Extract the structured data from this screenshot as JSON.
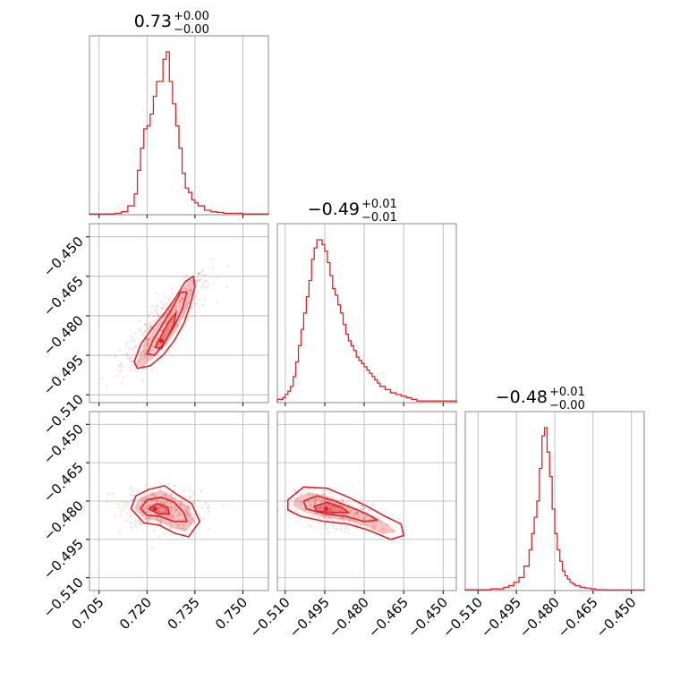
{
  "chart_data": {
    "type": "corner",
    "accent_color": "#d62728",
    "grid": true,
    "parameters": [
      {
        "title": {
          "value": "0.73",
          "upper": "+0.00",
          "lower": "−0.00"
        },
        "range": [
          0.702,
          0.758
        ],
        "ticks": [
          "0.705",
          "0.720",
          "0.735",
          "0.750"
        ],
        "tick_values": [
          0.705,
          0.72,
          0.735,
          0.75
        ]
      },
      {
        "title": {
          "value": "−0.49",
          "upper": "+0.01",
          "lower": "−0.01"
        },
        "range": [
          -0.513,
          -0.445
        ],
        "ticks": [
          "−0.510",
          "−0.495",
          "−0.480",
          "−0.465",
          "−0.450"
        ],
        "tick_values": [
          -0.51,
          -0.495,
          -0.48,
          -0.465,
          -0.45
        ]
      },
      {
        "title": {
          "value": "−0.48",
          "upper": "+0.01",
          "lower": "−0.00"
        },
        "range": [
          -0.515,
          -0.445
        ],
        "ticks": [
          "−0.510",
          "−0.495",
          "−0.480",
          "−0.465",
          "−0.450"
        ],
        "tick_values": [
          -0.51,
          -0.495,
          -0.48,
          -0.465,
          -0.45
        ]
      }
    ],
    "histograms": [
      {
        "param": 0,
        "bin_edges": [
          0.702,
          0.704,
          0.706,
          0.708,
          0.71,
          0.712,
          0.714,
          0.716,
          0.717,
          0.718,
          0.719,
          0.72,
          0.721,
          0.722,
          0.723,
          0.724,
          0.725,
          0.726,
          0.727,
          0.728,
          0.729,
          0.73,
          0.731,
          0.732,
          0.733,
          0.734,
          0.735,
          0.736,
          0.738,
          0.74,
          0.742,
          0.744,
          0.746,
          0.748,
          0.75,
          0.752,
          0.754,
          0.758
        ],
        "counts": [
          0.5,
          0.5,
          0.5,
          0.5,
          1,
          2,
          6,
          14,
          30,
          45,
          58,
          60,
          68,
          80,
          90,
          90,
          105,
          110,
          90,
          75,
          60,
          45,
          28,
          18,
          15,
          10,
          8,
          6,
          3,
          2,
          1.5,
          1,
          1,
          1,
          0.5,
          0.5,
          0.5
        ]
      },
      {
        "param": 1,
        "bin_edges": [
          -0.513,
          -0.511,
          -0.51,
          -0.509,
          -0.508,
          -0.507,
          -0.506,
          -0.505,
          -0.504,
          -0.503,
          -0.502,
          -0.501,
          -0.5,
          -0.499,
          -0.498,
          -0.497,
          -0.496,
          -0.495,
          -0.494,
          -0.493,
          -0.492,
          -0.491,
          -0.49,
          -0.489,
          -0.488,
          -0.487,
          -0.486,
          -0.485,
          -0.484,
          -0.483,
          -0.482,
          -0.481,
          -0.48,
          -0.479,
          -0.478,
          -0.477,
          -0.476,
          -0.475,
          -0.474,
          -0.472,
          -0.47,
          -0.468,
          -0.466,
          -0.464,
          -0.462,
          -0.46,
          -0.455,
          -0.445
        ],
        "counts": [
          2,
          3,
          5,
          7,
          10,
          16,
          25,
          35,
          45,
          55,
          65,
          75,
          88,
          95,
          100,
          100,
          97,
          93,
          86,
          78,
          70,
          66,
          60,
          55,
          48,
          42,
          38,
          35,
          32,
          28,
          26,
          24,
          22,
          20,
          18,
          16,
          14,
          12,
          10,
          8,
          6,
          5,
          4,
          3,
          2,
          1,
          1
        ]
      },
      {
        "param": 2,
        "bin_edges": [
          -0.515,
          -0.505,
          -0.5,
          -0.498,
          -0.496,
          -0.494,
          -0.492,
          -0.49,
          -0.489,
          -0.488,
          -0.487,
          -0.486,
          -0.485,
          -0.484,
          -0.483,
          -0.482,
          -0.481,
          -0.48,
          -0.479,
          -0.478,
          -0.477,
          -0.476,
          -0.475,
          -0.474,
          -0.473,
          -0.472,
          -0.47,
          -0.468,
          -0.466,
          -0.464,
          -0.462,
          -0.46,
          -0.445
        ],
        "counts": [
          0.5,
          1,
          2,
          3,
          5,
          8,
          15,
          25,
          35,
          45,
          55,
          75,
          95,
          100,
          85,
          70,
          50,
          35,
          25,
          18,
          12,
          9,
          7,
          5,
          4,
          3,
          2,
          1.5,
          1,
          0.5,
          0.5,
          0.3
        ]
      }
    ],
    "contours_2d": [
      {
        "pair": [
          0,
          1
        ],
        "peak": [
          0.7245,
          -0.4895
        ],
        "filled_region": [
          [
            0.7175,
            -0.4955
          ],
          [
            0.7195,
            -0.4895
          ],
          [
            0.723,
            -0.484
          ],
          [
            0.7265,
            -0.478
          ],
          [
            0.73,
            -0.472
          ],
          [
            0.733,
            -0.466
          ],
          [
            0.736,
            -0.4665
          ],
          [
            0.734,
            -0.4725
          ],
          [
            0.732,
            -0.479
          ],
          [
            0.7295,
            -0.485
          ],
          [
            0.726,
            -0.491
          ],
          [
            0.722,
            -0.496
          ],
          [
            0.7185,
            -0.4995
          ],
          [
            0.716,
            -0.499
          ]
        ],
        "contour_levels": [
          [
            [
              0.716,
              -0.4975
            ],
            [
              0.718,
              -0.491
            ],
            [
              0.7215,
              -0.485
            ],
            [
              0.7255,
              -0.479
            ],
            [
              0.729,
              -0.473
            ],
            [
              0.732,
              -0.467
            ],
            [
              0.7345,
              -0.465
            ],
            [
              0.735,
              -0.469
            ],
            [
              0.7335,
              -0.476
            ],
            [
              0.7315,
              -0.483
            ],
            [
              0.7285,
              -0.4895
            ],
            [
              0.725,
              -0.495
            ],
            [
              0.721,
              -0.499
            ],
            [
              0.717,
              -0.5
            ]
          ],
          [
            [
              0.72,
              -0.4945
            ],
            [
              0.722,
              -0.489
            ],
            [
              0.725,
              -0.483
            ],
            [
              0.728,
              -0.477
            ],
            [
              0.7305,
              -0.471
            ],
            [
              0.7325,
              -0.471
            ],
            [
              0.731,
              -0.4775
            ],
            [
              0.7285,
              -0.484
            ],
            [
              0.7255,
              -0.49
            ],
            [
              0.7225,
              -0.495
            ]
          ],
          [
            [
              0.7225,
              -0.492
            ],
            [
              0.7245,
              -0.4875
            ],
            [
              0.727,
              -0.482
            ],
            [
              0.729,
              -0.479
            ],
            [
              0.7285,
              -0.483
            ],
            [
              0.7265,
              -0.488
            ],
            [
              0.7245,
              -0.4925
            ]
          ]
        ]
      },
      {
        "pair": [
          0,
          2
        ],
        "peak": [
          0.7225,
          -0.483
        ],
        "filled_region": [
          [
            0.716,
            -0.483
          ],
          [
            0.7175,
            -0.479
          ],
          [
            0.721,
            -0.477
          ],
          [
            0.725,
            -0.476
          ],
          [
            0.729,
            -0.479
          ],
          [
            0.733,
            -0.482
          ],
          [
            0.735,
            -0.488
          ],
          [
            0.732,
            -0.492
          ],
          [
            0.728,
            -0.4905
          ],
          [
            0.724,
            -0.488
          ],
          [
            0.7195,
            -0.487
          ]
        ],
        "contour_levels": [
          [
            [
              0.715,
              -0.483
            ],
            [
              0.7165,
              -0.478
            ],
            [
              0.7205,
              -0.4755
            ],
            [
              0.7255,
              -0.474
            ],
            [
              0.7295,
              -0.4775
            ],
            [
              0.734,
              -0.481
            ],
            [
              0.7365,
              -0.488
            ],
            [
              0.733,
              -0.494
            ],
            [
              0.7285,
              -0.4925
            ],
            [
              0.724,
              -0.4895
            ],
            [
              0.719,
              -0.4885
            ]
          ],
          [
            [
              0.718,
              -0.483
            ],
            [
              0.72,
              -0.4795
            ],
            [
              0.7245,
              -0.4785
            ],
            [
              0.7285,
              -0.4805
            ],
            [
              0.7315,
              -0.4845
            ],
            [
              0.7325,
              -0.488
            ],
            [
              0.7285,
              -0.488
            ],
            [
              0.724,
              -0.486
            ],
            [
              0.72,
              -0.4855
            ]
          ],
          [
            [
              0.7205,
              -0.483
            ],
            [
              0.723,
              -0.481
            ],
            [
              0.7265,
              -0.4825
            ],
            [
              0.727,
              -0.485
            ],
            [
              0.7235,
              -0.485
            ]
          ]
        ]
      },
      {
        "pair": [
          1,
          2
        ],
        "peak": [
          -0.4945,
          -0.483
        ],
        "filled_region": [
          [
            -0.5065,
            -0.479
          ],
          [
            -0.501,
            -0.4765
          ],
          [
            -0.494,
            -0.478
          ],
          [
            -0.488,
            -0.481
          ],
          [
            -0.482,
            -0.484
          ],
          [
            -0.476,
            -0.486
          ],
          [
            -0.471,
            -0.489
          ],
          [
            -0.468,
            -0.492
          ],
          [
            -0.473,
            -0.493
          ],
          [
            -0.48,
            -0.4895
          ],
          [
            -0.487,
            -0.4875
          ],
          [
            -0.495,
            -0.4865
          ],
          [
            -0.502,
            -0.4845
          ],
          [
            -0.507,
            -0.482
          ]
        ],
        "contour_levels": [
          [
            [
              -0.509,
              -0.4795
            ],
            [
              -0.503,
              -0.4745
            ],
            [
              -0.494,
              -0.475
            ],
            [
              -0.486,
              -0.4785
            ],
            [
              -0.479,
              -0.482
            ],
            [
              -0.472,
              -0.486
            ],
            [
              -0.466,
              -0.489
            ],
            [
              -0.465,
              -0.4935
            ],
            [
              -0.47,
              -0.495
            ],
            [
              -0.478,
              -0.4915
            ],
            [
              -0.486,
              -0.489
            ],
            [
              -0.495,
              -0.488
            ],
            [
              -0.504,
              -0.486
            ],
            [
              -0.509,
              -0.4835
            ]
          ],
          [
            [
              -0.503,
              -0.48
            ],
            [
              -0.498,
              -0.478
            ],
            [
              -0.491,
              -0.48
            ],
            [
              -0.485,
              -0.4825
            ],
            [
              -0.479,
              -0.485
            ],
            [
              -0.475,
              -0.4875
            ],
            [
              -0.48,
              -0.488
            ],
            [
              -0.487,
              -0.486
            ],
            [
              -0.495,
              -0.485
            ],
            [
              -0.502,
              -0.483
            ]
          ],
          [
            [
              -0.499,
              -0.482
            ],
            [
              -0.494,
              -0.4805
            ],
            [
              -0.4885,
              -0.4825
            ],
            [
              -0.486,
              -0.4845
            ],
            [
              -0.492,
              -0.4845
            ],
            [
              -0.498,
              -0.484
            ]
          ]
        ]
      }
    ],
    "scatter_seeds": [
      {
        "pair": [
          0,
          1
        ],
        "center": [
          0.726,
          -0.482
        ],
        "spread": [
          0.007,
          0.009
        ],
        "corr": 0.88,
        "count": 420
      },
      {
        "pair": [
          0,
          2
        ],
        "center": [
          0.725,
          -0.483
        ],
        "spread": [
          0.006,
          0.004
        ],
        "corr": -0.15,
        "count": 420
      },
      {
        "pair": [
          1,
          2
        ],
        "center": [
          -0.49,
          -0.484
        ],
        "spread": [
          0.008,
          0.0035
        ],
        "corr": -0.55,
        "count": 420
      }
    ]
  }
}
